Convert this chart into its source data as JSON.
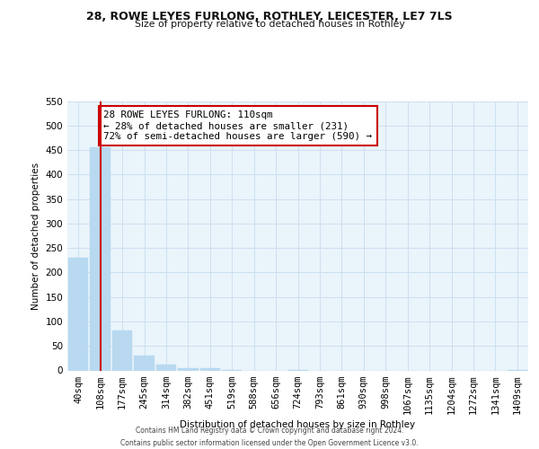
{
  "title": "28, ROWE LEYES FURLONG, ROTHLEY, LEICESTER, LE7 7LS",
  "subtitle": "Size of property relative to detached houses in Rothley",
  "xlabel": "Distribution of detached houses by size in Rothley",
  "ylabel": "Number of detached properties",
  "bar_labels": [
    "40sqm",
    "108sqm",
    "177sqm",
    "245sqm",
    "314sqm",
    "382sqm",
    "451sqm",
    "519sqm",
    "588sqm",
    "656sqm",
    "724sqm",
    "793sqm",
    "861sqm",
    "930sqm",
    "998sqm",
    "1067sqm",
    "1135sqm",
    "1204sqm",
    "1272sqm",
    "1341sqm",
    "1409sqm"
  ],
  "bar_values": [
    230,
    455,
    82,
    31,
    12,
    5,
    4,
    1,
    0,
    0,
    1,
    0,
    0,
    0,
    0,
    0,
    0,
    0,
    0,
    0,
    1
  ],
  "bar_color": "#b8d9f0",
  "bar_edge_color": "#b8d9f0",
  "property_line_x": 1,
  "annotation_line1": "28 ROWE LEYES FURLONG: 110sqm",
  "annotation_line2": "← 28% of detached houses are smaller (231)",
  "annotation_line3": "72% of semi-detached houses are larger (590) →",
  "annotation_box_color": "#ffffff",
  "annotation_box_edge": "#cc0000",
  "vline_color": "#cc0000",
  "ylim": [
    0,
    550
  ],
  "yticks": [
    0,
    50,
    100,
    150,
    200,
    250,
    300,
    350,
    400,
    450,
    500,
    550
  ],
  "footer1": "Contains HM Land Registry data © Crown copyright and database right 2024.",
  "footer2": "Contains public sector information licensed under the Open Government Licence v3.0.",
  "grid_color": "#cce0ef",
  "bg_color": "#eaf4fb"
}
